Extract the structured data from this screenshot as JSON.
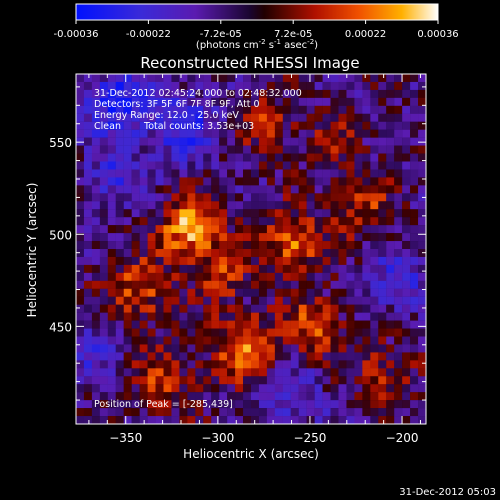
{
  "colorbar": {
    "ticks": [
      "-0.00036",
      "-0.00022",
      "-7.2e-05",
      "7.2e-05",
      "0.00022",
      "0.00036"
    ],
    "units_main": "(photons cm",
    "units_sup1": "-2",
    "units_mid": " s",
    "units_sup2": "-1",
    "units_mid2": " asec",
    "units_sup3": "-2",
    "units_end": ")",
    "range": [
      -0.00036,
      0.00036
    ]
  },
  "chart_data": {
    "type": "heatmap",
    "title": "Reconstructed RHESSI Image",
    "xlabel": "Heliocentric X (arcsec)",
    "ylabel": "Heliocentric Y (arcsec)",
    "xlim": [
      -377,
      -187
    ],
    "ylim": [
      397,
      587
    ],
    "x_ticks": [
      -350,
      -300,
      -250,
      -200
    ],
    "y_ticks": [
      450,
      500,
      550
    ],
    "x_tick_labels": [
      "−350",
      "−300",
      "−250",
      "−200"
    ],
    "y_tick_labels": [
      "450",
      "500",
      "550"
    ],
    "peak_position": [
      -285,
      439
    ],
    "colormap": "rhessi-blue-purple-red-yellow-white",
    "colors": {
      "low": "#0000ff",
      "mid_low": "#5a1bb0",
      "mid": "#2a0a55",
      "mid_high": "#d02000",
      "high": "#ffa000",
      "max": "#ffffff"
    },
    "annotations": {
      "time_range": "31-Dec-2012 02:45:24.000 to 02:48:32.000",
      "detectors": "Detectors: 3F 5F 6F 7F 8F 9F, Att 0",
      "energy": "Energy Range: 12.0 - 25.0 keV",
      "clean_label": "Clean",
      "total_counts": "Total counts: 3.53e+03",
      "peak_text": "Position of Peak = [-285,439]"
    }
  },
  "footer": {
    "timestamp": "31-Dec-2012 05:03"
  }
}
